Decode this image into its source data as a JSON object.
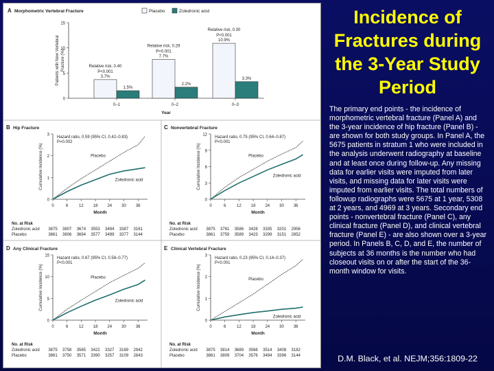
{
  "slide": {
    "title": "Incidence of Fractures during the 3-Year Study Period",
    "body": "The primary end points - the incidence of morphometric vertebral fracture (Panel A) and the 3-year incidence of hip fracture (Panel B) - are shown for both study groups. In Panel A, the 5675 patients in stratum 1 who were included in the analysis underwent radiography at baseline and at least once during follow-up. Any missing data for earlier visits were imputed from later visits, and missing data for later visits were imputed from earlier visits. The total numbers of followup radiographs were 5675 at 1 year, 5308 at 2 years, and 4969 at 3 years. Secondary end points - nonvertebral fracture (Panel C), any clinical fracture (Panel D), and clinical vertebral fracture (Panel E) - are also shown over a 3-year period. In Panels B, C, D, and E, the number of subjects at 36 months is the number who had closeout visits on or after the start of the 36-month window for visits.",
    "citation": "D.M. Black, et al. NEJM;356:1809-22"
  },
  "colors": {
    "placebo": "#f2f6fc",
    "zoledronic": "#2a7d7a",
    "placebo_line": "#555555",
    "zoledronic_line": "#1e6f6c",
    "background": "#070a52",
    "title": "#ffff00"
  },
  "chart_data": [
    {
      "panel": "A",
      "type": "bar",
      "title": "Morphometric Vertebral Fracture",
      "xlabel": "Year",
      "ylabel": "Patients with New Vertebral Fracture (%)",
      "ylim": [
        0,
        15
      ],
      "yticks": [
        "0",
        "5",
        "10",
        "15"
      ],
      "categories": [
        "0–1",
        "0–2",
        "0–3"
      ],
      "legend": [
        "Placebo",
        "Zoledronic acid"
      ],
      "series": [
        {
          "name": "Placebo",
          "values": [
            3.7,
            7.7,
            10.9
          ],
          "labels": [
            "3.7%",
            "7.7%",
            "10.9%"
          ]
        },
        {
          "name": "Zoledronic acid",
          "values": [
            1.5,
            2.2,
            3.3
          ],
          "labels": [
            "1.5%",
            "2.2%",
            "3.3%"
          ]
        }
      ],
      "annotations": [
        [
          "Relative risk, 0.40",
          "P<0.001"
        ],
        [
          "Relative risk, 0.29",
          "P<0.001"
        ],
        [
          "Relative risk, 0.30",
          "P<0.001"
        ]
      ]
    },
    {
      "panel": "B",
      "type": "line",
      "title": "Hip Fracture",
      "xlabel": "Month",
      "ylabel": "Cumulative Incidence (%)",
      "xticks": [
        "0",
        "6",
        "12",
        "18",
        "24",
        "30",
        "36"
      ],
      "ylim": [
        0,
        3
      ],
      "yticks": [
        "0",
        "1",
        "2",
        "3"
      ],
      "stat": [
        "Hazard ratio, 0.59 (95% CI, 0.42–0.83)",
        "P=0.002"
      ],
      "series": [
        {
          "name": "Placebo",
          "x": [
            0,
            6,
            12,
            18,
            24,
            30,
            36,
            39
          ],
          "values": [
            0,
            0.5,
            0.95,
            1.35,
            1.75,
            2.15,
            2.5,
            2.9
          ]
        },
        {
          "name": "Zoledronic acid",
          "x": [
            0,
            6,
            12,
            18,
            24,
            30,
            36,
            39
          ],
          "values": [
            0,
            0.35,
            0.65,
            0.9,
            1.15,
            1.3,
            1.4,
            1.45
          ]
        }
      ],
      "risk_title": "No. at Risk",
      "risk": [
        {
          "name": "Zoledronic acid",
          "values": [
            "3875",
            "3807",
            "3674",
            "3553",
            "3494",
            "3387",
            "3161"
          ]
        },
        {
          "name": "Placebo",
          "values": [
            "3861",
            "3806",
            "3694",
            "3577",
            "3499",
            "3377",
            "3144"
          ]
        }
      ]
    },
    {
      "panel": "C",
      "type": "line",
      "title": "Nonvertebral Fracture",
      "xlabel": "Month",
      "ylabel": "Cumulative Incidence (%)",
      "xticks": [
        "0",
        "6",
        "12",
        "18",
        "24",
        "30",
        "36"
      ],
      "ylim": [
        0,
        12
      ],
      "yticks": [
        "0",
        "3",
        "6",
        "9",
        "12"
      ],
      "stat": [
        "Hazard ratio, 0.75 (95% CI, 0.64–0.87)",
        "P<0.001"
      ],
      "series": [
        {
          "name": "Placebo",
          "x": [
            0,
            6,
            12,
            18,
            24,
            30,
            36,
            39
          ],
          "values": [
            0,
            2.2,
            4.0,
            5.5,
            7.0,
            8.3,
            9.5,
            10.7
          ]
        },
        {
          "name": "Zoledronic acid",
          "x": [
            0,
            6,
            12,
            18,
            24,
            30,
            36,
            39
          ],
          "values": [
            0,
            1.6,
            3.0,
            4.2,
            5.4,
            6.4,
            7.4,
            8.2
          ]
        }
      ],
      "risk_title": "No. at Risk",
      "risk": [
        {
          "name": "Zoledronic acid",
          "values": [
            "3875",
            "3761",
            "3586",
            "3428",
            "3335",
            "3201",
            "2956"
          ]
        },
        {
          "name": "Placebo",
          "values": [
            "3861",
            "3759",
            "3589",
            "3423",
            "3299",
            "3151",
            "2852"
          ]
        }
      ]
    },
    {
      "panel": "D",
      "type": "line",
      "title": "Any Clinical Fracture",
      "xlabel": "Month",
      "ylabel": "Cumulative Incidence (%)",
      "xticks": [
        "0",
        "6",
        "12",
        "18",
        "24",
        "30",
        "36"
      ],
      "ylim": [
        0,
        15
      ],
      "yticks": [
        "0",
        "5",
        "10",
        "15"
      ],
      "stat": [
        "Hazard ratio, 0.67 (95% CI, 0.58–0.77)",
        "P<0.001"
      ],
      "series": [
        {
          "name": "Placebo",
          "x": [
            0,
            6,
            12,
            18,
            24,
            30,
            36,
            39
          ],
          "values": [
            0,
            2.5,
            4.6,
            6.6,
            8.6,
            10.3,
            11.9,
            13.2
          ]
        },
        {
          "name": "Zoledronic acid",
          "x": [
            0,
            6,
            12,
            18,
            24,
            30,
            36,
            39
          ],
          "values": [
            0,
            1.7,
            3.2,
            4.6,
            5.8,
            7.1,
            8.2,
            9.2
          ]
        }
      ],
      "risk_title": "No. at Risk",
      "risk": [
        {
          "name": "Zoledronic acid",
          "values": [
            "3875",
            "3758",
            "3585",
            "3422",
            "3327",
            "3189",
            "2942"
          ]
        },
        {
          "name": "Placebo",
          "values": [
            "3861",
            "3750",
            "3571",
            "3390",
            "3257",
            "3109",
            "2843"
          ]
        }
      ]
    },
    {
      "panel": "E",
      "type": "line",
      "title": "Clinical Vertebral Fracture",
      "xlabel": "Month",
      "ylabel": "Cumulative Incidence (%)",
      "xticks": [
        "0",
        "6",
        "12",
        "18",
        "24",
        "30",
        "36"
      ],
      "ylim": [
        0,
        3
      ],
      "yticks": [
        "0",
        "1",
        "2",
        "3"
      ],
      "stat": [
        "Hazard ratio, 0.23 (95% CI, 0.14–0.37)",
        "P<0.001"
      ],
      "series": [
        {
          "name": "Placebo",
          "x": [
            0,
            6,
            12,
            18,
            24,
            30,
            36,
            39
          ],
          "values": [
            0,
            0.4,
            0.8,
            1.2,
            1.65,
            2.1,
            2.5,
            2.8
          ]
        },
        {
          "name": "Zoledronic acid",
          "x": [
            0,
            6,
            12,
            18,
            24,
            30,
            36,
            39
          ],
          "values": [
            0,
            0.15,
            0.25,
            0.35,
            0.42,
            0.5,
            0.55,
            0.6
          ]
        }
      ],
      "risk_title": "No. at Risk",
      "risk": [
        {
          "name": "Zoledronic acid",
          "values": [
            "3875",
            "3814",
            "3689",
            "3568",
            "3514",
            "3408",
            "3182"
          ]
        },
        {
          "name": "Placebo",
          "values": [
            "3861",
            "3809",
            "3704",
            "3576",
            "3494",
            "3396",
            "3144"
          ]
        }
      ]
    }
  ]
}
